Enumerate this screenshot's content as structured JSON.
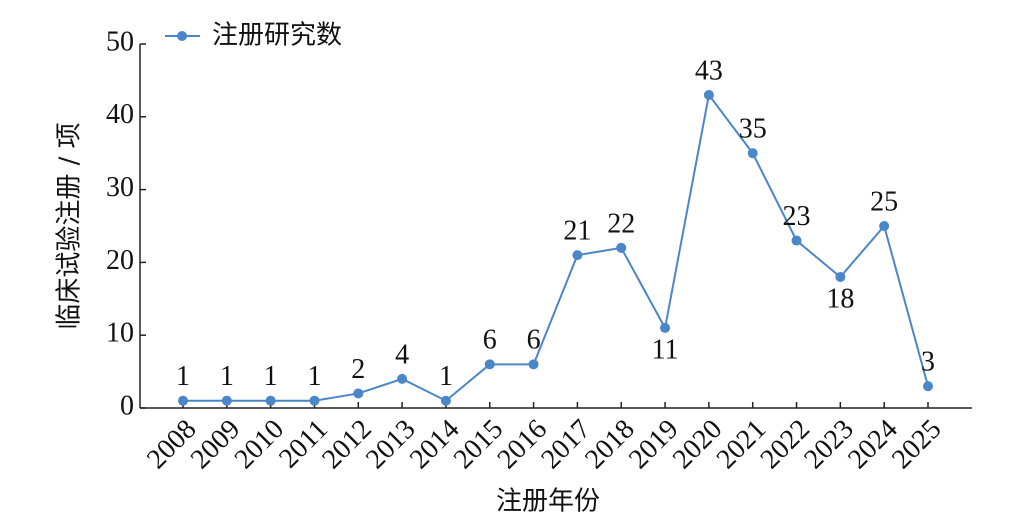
{
  "chart_data": {
    "type": "line",
    "x_label": "注册年份",
    "y_label": "临床试验注册 / 项",
    "categories": [
      "2008",
      "2009",
      "2010",
      "2011",
      "2012",
      "2013",
      "2014",
      "2015",
      "2016",
      "2017",
      "2018",
      "2019",
      "2020",
      "2021",
      "2022",
      "2023",
      "2024",
      "2025"
    ],
    "series": [
      {
        "name": "注册研究数",
        "color": "#4a86c8",
        "values": [
          1,
          1,
          1,
          1,
          2,
          4,
          1,
          6,
          6,
          21,
          22,
          11,
          43,
          35,
          23,
          18,
          25,
          3
        ]
      }
    ],
    "ylim": [
      0,
      50
    ],
    "yticks": [
      0,
      10,
      20,
      30,
      40,
      50
    ],
    "legend": "top-left"
  }
}
